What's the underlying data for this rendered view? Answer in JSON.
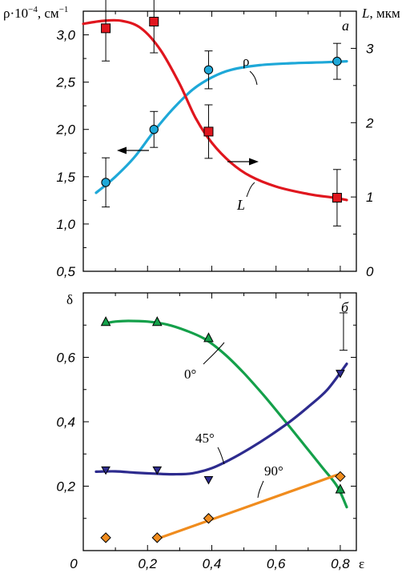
{
  "chart_data": [
    {
      "panel": "а",
      "type": "line",
      "x_axis": {
        "range": [
          0,
          0.85
        ]
      },
      "y_left": {
        "label": "ρ·10",
        "exp": "−4",
        "unit": ", см",
        "unit_exp": "−1",
        "range": [
          0.5,
          3.25
        ],
        "ticks": [
          "0,5",
          "1,0",
          "1,5",
          "2,0",
          "2,5",
          "3,0"
        ],
        "tick_values": [
          0.5,
          1.0,
          1.5,
          2.0,
          2.5,
          3.0
        ]
      },
      "y_right": {
        "label": "L",
        "unit": ", мкм",
        "range": [
          0,
          3.5
        ],
        "ticks": [
          "0",
          "1",
          "2",
          "3"
        ],
        "tick_values": [
          0,
          1,
          2,
          3
        ]
      },
      "series": [
        {
          "name": "ρ",
          "axis": "left",
          "color": "#1ea8d8",
          "marker": "circle",
          "points": [
            {
              "x": 0.07,
              "y": 1.44,
              "err": 0.26
            },
            {
              "x": 0.22,
              "y": 2.0,
              "err": 0.19
            },
            {
              "x": 0.39,
              "y": 2.63,
              "err": 0.2
            },
            {
              "x": 0.79,
              "y": 2.72,
              "err": 0.19
            }
          ],
          "curve": [
            [
              0.04,
              1.33
            ],
            [
              0.1,
              1.5
            ],
            [
              0.16,
              1.71
            ],
            [
              0.22,
              1.98
            ],
            [
              0.28,
              2.22
            ],
            [
              0.34,
              2.42
            ],
            [
              0.4,
              2.55
            ],
            [
              0.46,
              2.63
            ],
            [
              0.55,
              2.68
            ],
            [
              0.65,
              2.7
            ],
            [
              0.75,
              2.71
            ],
            [
              0.82,
              2.72
            ]
          ]
        },
        {
          "name": "L",
          "axis": "right",
          "color": "#e0161e",
          "marker": "square",
          "points": [
            {
              "x": 0.07,
              "y": 3.27,
              "err": 0.44
            },
            {
              "x": 0.22,
              "y": 3.36,
              "err": 0.42
            },
            {
              "x": 0.39,
              "y": 1.88,
              "err": 0.36
            },
            {
              "x": 0.79,
              "y": 0.99,
              "err": 0.38
            }
          ],
          "curve": [
            [
              0.0,
              3.33
            ],
            [
              0.06,
              3.37
            ],
            [
              0.12,
              3.37
            ],
            [
              0.18,
              3.27
            ],
            [
              0.24,
              2.98
            ],
            [
              0.3,
              2.52
            ],
            [
              0.35,
              2.06
            ],
            [
              0.4,
              1.73
            ],
            [
              0.46,
              1.46
            ],
            [
              0.52,
              1.28
            ],
            [
              0.6,
              1.14
            ],
            [
              0.7,
              1.04
            ],
            [
              0.78,
              0.99
            ],
            [
              0.82,
              0.96
            ]
          ]
        }
      ],
      "annotations": {
        "rho_label": "ρ",
        "l_label": "L"
      }
    },
    {
      "panel": "б",
      "type": "line",
      "x_axis": {
        "label": "ε",
        "range": [
          0,
          0.85
        ],
        "ticks": [
          "0",
          "0,2",
          "0,4",
          "0,6",
          "0,8"
        ],
        "tick_values": [
          0,
          0.2,
          0.4,
          0.6,
          0.8
        ]
      },
      "y_left": {
        "label": "δ",
        "range": [
          0,
          0.8
        ],
        "ticks": [
          "0,2",
          "0,4",
          "0,6"
        ],
        "tick_values": [
          0.2,
          0.4,
          0.6
        ]
      },
      "series": [
        {
          "name": "0°",
          "color": "#14a04a",
          "marker": "triangle",
          "points": [
            {
              "x": 0.07,
              "y": 0.71
            },
            {
              "x": 0.23,
              "y": 0.71
            },
            {
              "x": 0.39,
              "y": 0.66
            },
            {
              "x": 0.8,
              "y": 0.19
            }
          ],
          "curve": [
            [
              0.07,
              0.706
            ],
            [
              0.1,
              0.711
            ],
            [
              0.14,
              0.713
            ],
            [
              0.2,
              0.711
            ],
            [
              0.26,
              0.702
            ],
            [
              0.32,
              0.683
            ],
            [
              0.38,
              0.656
            ],
            [
              0.44,
              0.61
            ],
            [
              0.5,
              0.551
            ],
            [
              0.56,
              0.484
            ],
            [
              0.62,
              0.412
            ],
            [
              0.68,
              0.338
            ],
            [
              0.74,
              0.263
            ],
            [
              0.79,
              0.2
            ],
            [
              0.82,
              0.135
            ]
          ]
        },
        {
          "name": "45°",
          "color": "#2d2b8e",
          "marker": "inverted-triangle",
          "points": [
            {
              "x": 0.07,
              "y": 0.25
            },
            {
              "x": 0.23,
              "y": 0.25
            },
            {
              "x": 0.39,
              "y": 0.22
            },
            {
              "x": 0.8,
              "y": 0.55
            }
          ],
          "curve": [
            [
              0.04,
              0.245
            ],
            [
              0.1,
              0.246
            ],
            [
              0.16,
              0.242
            ],
            [
              0.22,
              0.239
            ],
            [
              0.28,
              0.237
            ],
            [
              0.34,
              0.24
            ],
            [
              0.4,
              0.256
            ],
            [
              0.46,
              0.284
            ],
            [
              0.52,
              0.318
            ],
            [
              0.58,
              0.356
            ],
            [
              0.64,
              0.398
            ],
            [
              0.7,
              0.446
            ],
            [
              0.76,
              0.5
            ],
            [
              0.82,
              0.58
            ]
          ]
        },
        {
          "name": "90°",
          "color": "#f08c1e",
          "marker": "diamond",
          "points": [
            {
              "x": 0.07,
              "y": 0.04
            },
            {
              "x": 0.23,
              "y": 0.04
            },
            {
              "x": 0.39,
              "y": 0.1
            },
            {
              "x": 0.8,
              "y": 0.23
            }
          ],
          "curve": [
            [
              0.24,
              0.04
            ],
            [
              0.79,
              0.235
            ]
          ]
        }
      ],
      "errorbar": {
        "x": 0.81,
        "y": 0.68,
        "err": 0.058
      }
    }
  ]
}
